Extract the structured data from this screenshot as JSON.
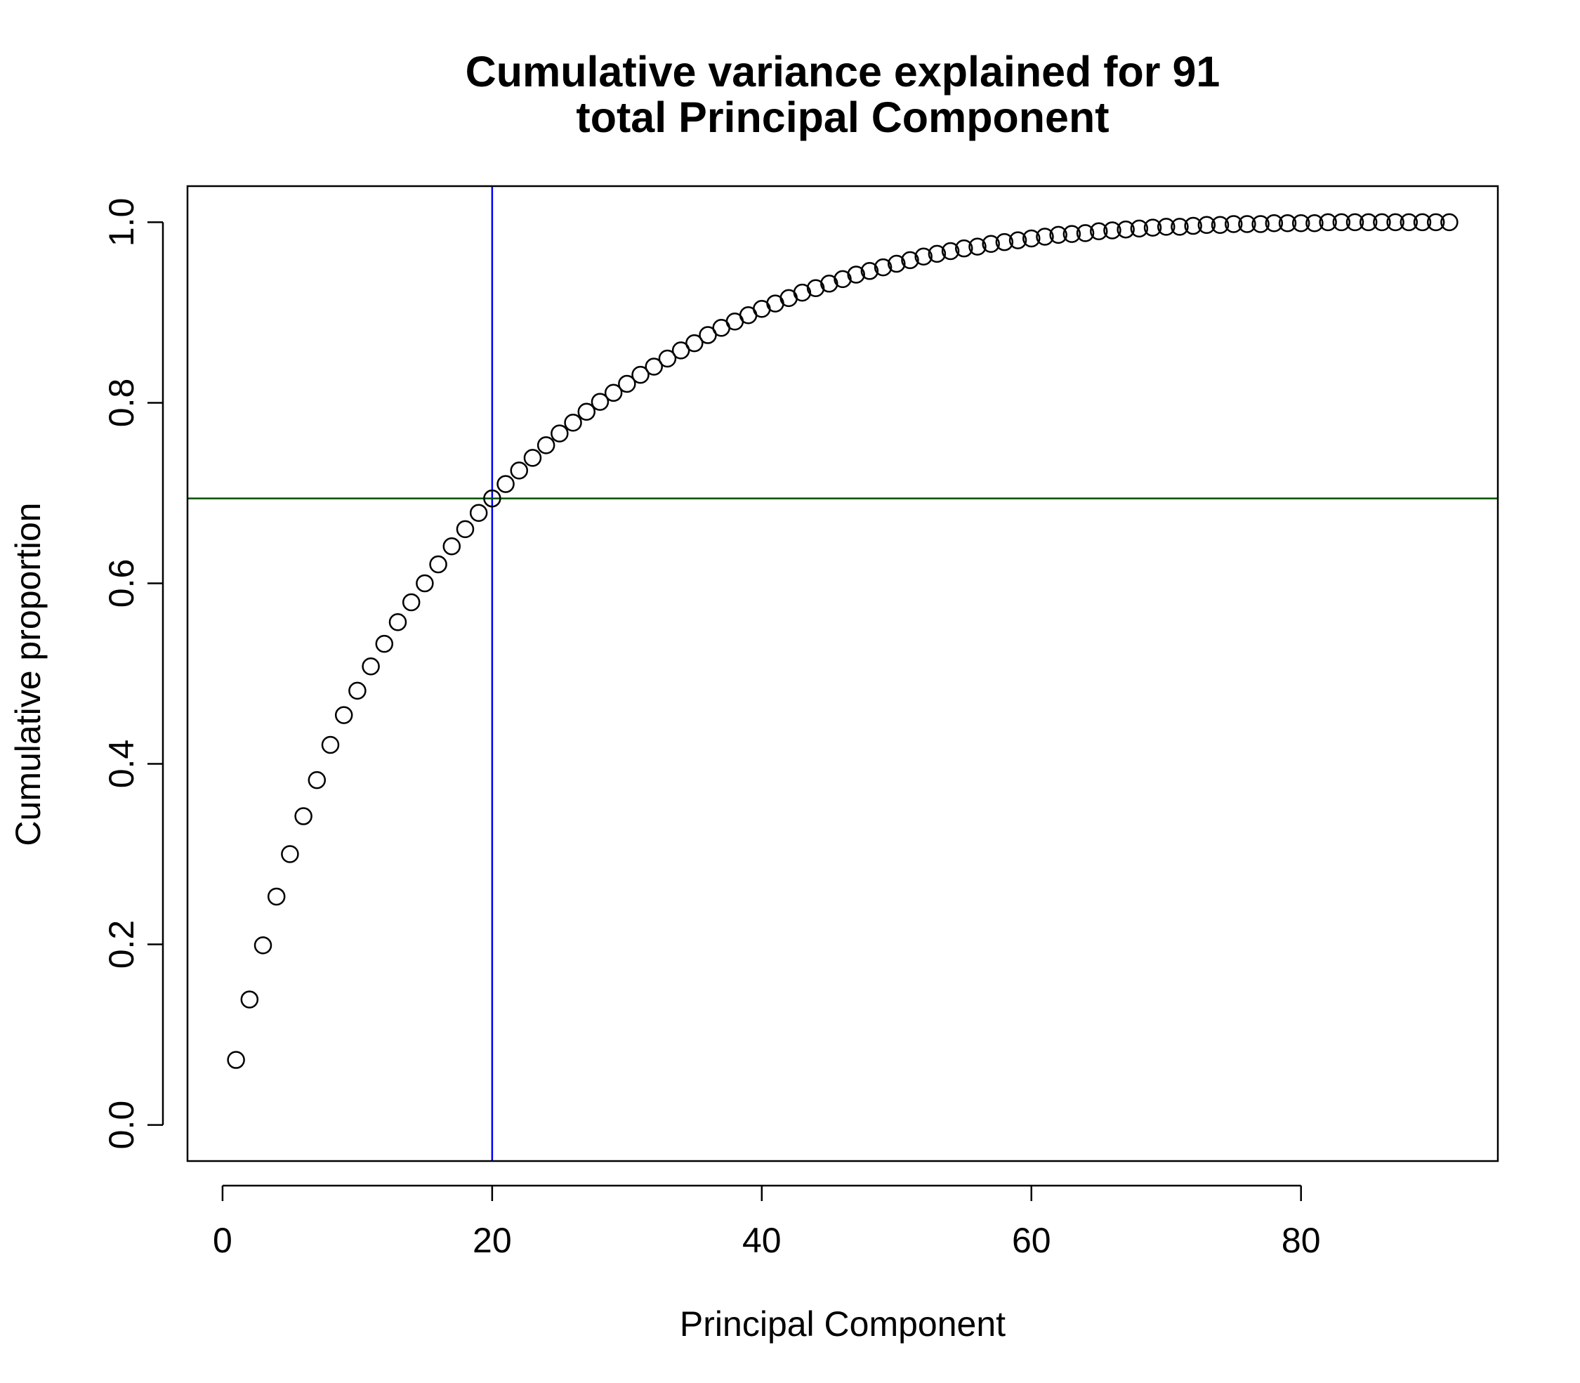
{
  "chart_data": {
    "type": "scatter",
    "title_lines": [
      "Cumulative variance explained for 91",
      "total Principal Component"
    ],
    "xlabel": "Principal Component",
    "ylabel": "Cumulative proportion",
    "xlim": [
      -2.6,
      94.6
    ],
    "ylim": [
      -0.04,
      1.04
    ],
    "xticks": [
      0,
      20,
      40,
      60,
      80
    ],
    "yticks": [
      0.0,
      0.2,
      0.4,
      0.6,
      0.8,
      1.0
    ],
    "xtick_labels": [
      "0",
      "20",
      "40",
      "60",
      "80"
    ],
    "ytick_labels": [
      "0.0",
      "0.2",
      "0.4",
      "0.6",
      "0.8",
      "1.0"
    ],
    "grid": false,
    "marker": "open-circle",
    "x": [
      1,
      2,
      3,
      4,
      5,
      6,
      7,
      8,
      9,
      10,
      11,
      12,
      13,
      14,
      15,
      16,
      17,
      18,
      19,
      20,
      21,
      22,
      23,
      24,
      25,
      26,
      27,
      28,
      29,
      30,
      31,
      32,
      33,
      34,
      35,
      36,
      37,
      38,
      39,
      40,
      41,
      42,
      43,
      44,
      45,
      46,
      47,
      48,
      49,
      50,
      51,
      52,
      53,
      54,
      55,
      56,
      57,
      58,
      59,
      60,
      61,
      62,
      63,
      64,
      65,
      66,
      67,
      68,
      69,
      70,
      71,
      72,
      73,
      74,
      75,
      76,
      77,
      78,
      79,
      80,
      81,
      82,
      83,
      84,
      85,
      86,
      87,
      88,
      89,
      90,
      91
    ],
    "y": [
      0.072,
      0.139,
      0.199,
      0.253,
      0.3,
      0.342,
      0.382,
      0.421,
      0.454,
      0.481,
      0.508,
      0.533,
      0.557,
      0.579,
      0.6,
      0.621,
      0.641,
      0.66,
      0.678,
      0.694,
      0.71,
      0.725,
      0.739,
      0.753,
      0.766,
      0.778,
      0.79,
      0.801,
      0.811,
      0.821,
      0.831,
      0.84,
      0.849,
      0.858,
      0.866,
      0.875,
      0.883,
      0.89,
      0.897,
      0.904,
      0.91,
      0.916,
      0.922,
      0.927,
      0.932,
      0.937,
      0.942,
      0.946,
      0.95,
      0.954,
      0.958,
      0.962,
      0.965,
      0.968,
      0.971,
      0.973,
      0.976,
      0.978,
      0.98,
      0.982,
      0.984,
      0.986,
      0.987,
      0.988,
      0.99,
      0.991,
      0.992,
      0.993,
      0.994,
      0.995,
      0.995,
      0.996,
      0.997,
      0.997,
      0.998,
      0.998,
      0.998,
      0.999,
      0.999,
      0.999,
      0.999,
      1.0,
      1.0,
      1.0,
      1.0,
      1.0,
      1.0,
      1.0,
      1.0,
      1.0,
      1.0
    ],
    "reference_lines": [
      {
        "orientation": "vertical",
        "value": 20,
        "color": "#0000ff"
      },
      {
        "orientation": "horizontal",
        "value": 0.694,
        "color": "#005000"
      }
    ],
    "point_color": "#000000"
  }
}
